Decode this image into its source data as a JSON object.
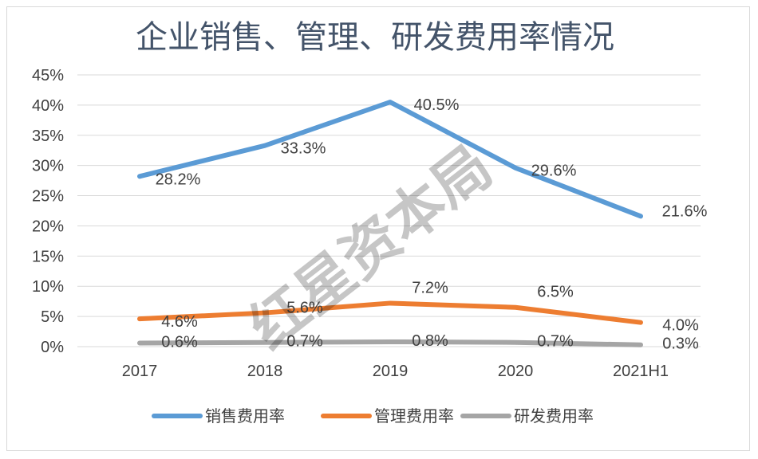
{
  "chart_data": {
    "type": "line",
    "title": "企业销售、管理、研发费用率情况",
    "categories": [
      "2017",
      "2018",
      "2019",
      "2020",
      "2021H1"
    ],
    "y_ticks": [
      "0%",
      "5%",
      "10%",
      "15%",
      "20%",
      "25%",
      "30%",
      "35%",
      "40%",
      "45%"
    ],
    "ylim": [
      0,
      45
    ],
    "grid": true,
    "legend_position": "bottom",
    "series": [
      {
        "name": "销售费用率",
        "color": "#5b9bd5",
        "values": [
          28.2,
          33.3,
          40.5,
          29.6,
          21.6
        ],
        "labels": [
          "28.2%",
          "33.3%",
          "40.5%",
          "29.6%",
          "21.6%"
        ]
      },
      {
        "name": "管理费用率",
        "color": "#ed7d31",
        "values": [
          4.6,
          5.6,
          7.2,
          6.5,
          4.0
        ],
        "labels": [
          "4.6%",
          "5.6%",
          "7.2%",
          "6.5%",
          "4.0%"
        ]
      },
      {
        "name": "研发费用率",
        "color": "#a5a5a5",
        "values": [
          0.6,
          0.7,
          0.8,
          0.7,
          0.3
        ],
        "labels": [
          "0.6%",
          "0.7%",
          "0.8%",
          "0.7%",
          "0.3%"
        ]
      }
    ],
    "watermark": "红星资本局"
  }
}
